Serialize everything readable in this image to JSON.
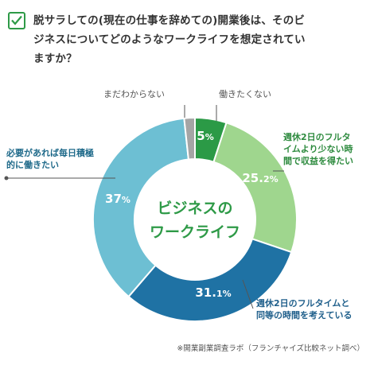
{
  "question": {
    "lines": [
      "脱サラしての(現在の仕事を辞めての)開業後は、そのビ",
      "ジネスについてどのようなワークライフを想定されてい",
      "ますか？"
    ],
    "icon": "checkbox-check-icon",
    "accent_color": "#2e9a47"
  },
  "chart_data": {
    "type": "pie",
    "donut": true,
    "center_label": [
      "ビジネスの",
      "ワークライフ"
    ],
    "slices": [
      {
        "label": "働きたくない",
        "value": 5,
        "value_text": "5",
        "color": "#2b9a46",
        "callout_color": "#555555"
      },
      {
        "label": "週休2日のフルタイムより少ない時間で収益を得たい",
        "label_lines": [
          "週休2日のフルタ",
          "イムより少ない時",
          "間で収益を得たい"
        ],
        "value": 25.2,
        "value_text": "25.2",
        "color": "#9fd68e",
        "callout_color": "#2e8b3f"
      },
      {
        "label": "週休2日のフルタイムと同等の時間を考えている",
        "label_lines": [
          "週休2日のフルタイムと",
          "同等の時間を考えている"
        ],
        "value": 31.1,
        "value_text": "31.1",
        "color": "#1f72a4",
        "callout_color": "#1f5f8b"
      },
      {
        "label": "必要があれば毎日積極的に働きたい",
        "label_lines": [
          "必要があれば毎日積極",
          "的に働きたい"
        ],
        "value": 37,
        "value_text": "37",
        "color": "#6dbfd3",
        "callout_color": "#1f6a8a"
      },
      {
        "label": "まだわからない",
        "value": 1.7,
        "value_text": "",
        "color": "#a5a5a5",
        "callout_color": "#555555"
      }
    ],
    "unit": "%",
    "center_color": "#2e9a47"
  },
  "footnote": "※開業副業調査ラボ（フランチャイズ比較ネット調べ）"
}
